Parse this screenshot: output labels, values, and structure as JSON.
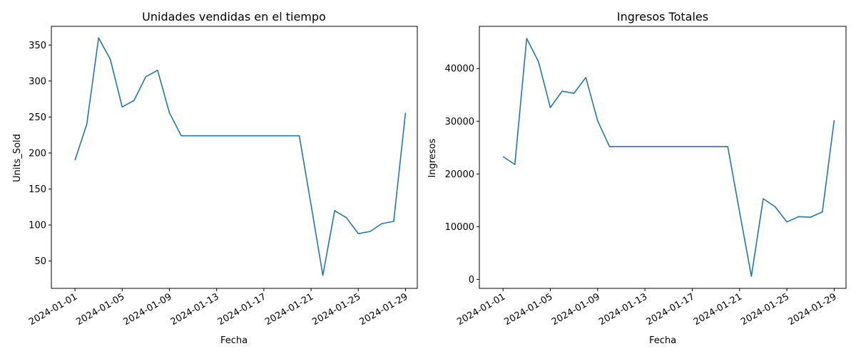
{
  "chart_data": [
    {
      "type": "line",
      "title": "Unidades vendidas en el tiempo",
      "xlabel": "Fecha",
      "ylabel": "Units_Sold",
      "xlim": [
        "2023-12-30",
        "2024-01-30"
      ],
      "ylim": [
        12,
        376
      ],
      "x_ticks": [
        "2024-01-01",
        "2024-01-05",
        "2024-01-09",
        "2024-01-13",
        "2024-01-17",
        "2024-01-21",
        "2024-01-25",
        "2024-01-29"
      ],
      "y_ticks": [
        50,
        100,
        150,
        200,
        250,
        300,
        350
      ],
      "grid": false,
      "line_color": "#1f77b4",
      "series": [
        {
          "x": [
            "2024-01-01",
            "2024-01-02",
            "2024-01-03",
            "2024-01-04",
            "2024-01-05",
            "2024-01-06",
            "2024-01-07",
            "2024-01-08",
            "2024-01-09",
            "2024-01-10",
            "2024-01-11",
            "2024-01-12",
            "2024-01-13",
            "2024-01-14",
            "2024-01-15",
            "2024-01-16",
            "2024-01-17",
            "2024-01-18",
            "2024-01-19",
            "2024-01-20",
            "2024-01-21",
            "2024-01-22",
            "2024-01-23",
            "2024-01-24",
            "2024-01-25",
            "2024-01-26",
            "2024-01-27",
            "2024-01-28",
            "2024-01-29"
          ],
          "y": [
            190,
            240,
            360,
            330,
            264,
            273,
            306,
            315,
            256,
            224,
            224,
            224,
            224,
            224,
            224,
            224,
            224,
            224,
            224,
            224,
            128,
            30,
            120,
            110,
            88,
            91,
            102,
            105,
            256
          ]
        }
      ]
    },
    {
      "type": "line",
      "title": "Ingresos Totales",
      "xlabel": "Fecha",
      "ylabel": "Ingresos",
      "xlim": [
        "2023-12-30",
        "2024-01-30"
      ],
      "ylim": [
        -1700,
        48000
      ],
      "x_ticks": [
        "2024-01-01",
        "2024-01-05",
        "2024-01-09",
        "2024-01-13",
        "2024-01-17",
        "2024-01-21",
        "2024-01-25",
        "2024-01-29"
      ],
      "y_ticks": [
        0,
        10000,
        20000,
        30000,
        40000
      ],
      "grid": false,
      "line_color": "#1f77b4",
      "series": [
        {
          "x": [
            "2024-01-01",
            "2024-01-02",
            "2024-01-03",
            "2024-01-04",
            "2024-01-05",
            "2024-01-06",
            "2024-01-07",
            "2024-01-08",
            "2024-01-09",
            "2024-01-10",
            "2024-01-11",
            "2024-01-12",
            "2024-01-13",
            "2024-01-14",
            "2024-01-15",
            "2024-01-16",
            "2024-01-17",
            "2024-01-18",
            "2024-01-19",
            "2024-01-20",
            "2024-01-21",
            "2024-01-22",
            "2024-01-23",
            "2024-01-24",
            "2024-01-25",
            "2024-01-26",
            "2024-01-27",
            "2024-01-28",
            "2024-01-29"
          ],
          "y": [
            23300,
            21800,
            45700,
            41300,
            32600,
            35700,
            35300,
            38300,
            30100,
            25200,
            25200,
            25200,
            25200,
            25200,
            25200,
            25200,
            25200,
            25200,
            25200,
            25200,
            12800,
            600,
            15300,
            13800,
            10900,
            11900,
            11800,
            12800,
            30200
          ]
        }
      ]
    }
  ]
}
